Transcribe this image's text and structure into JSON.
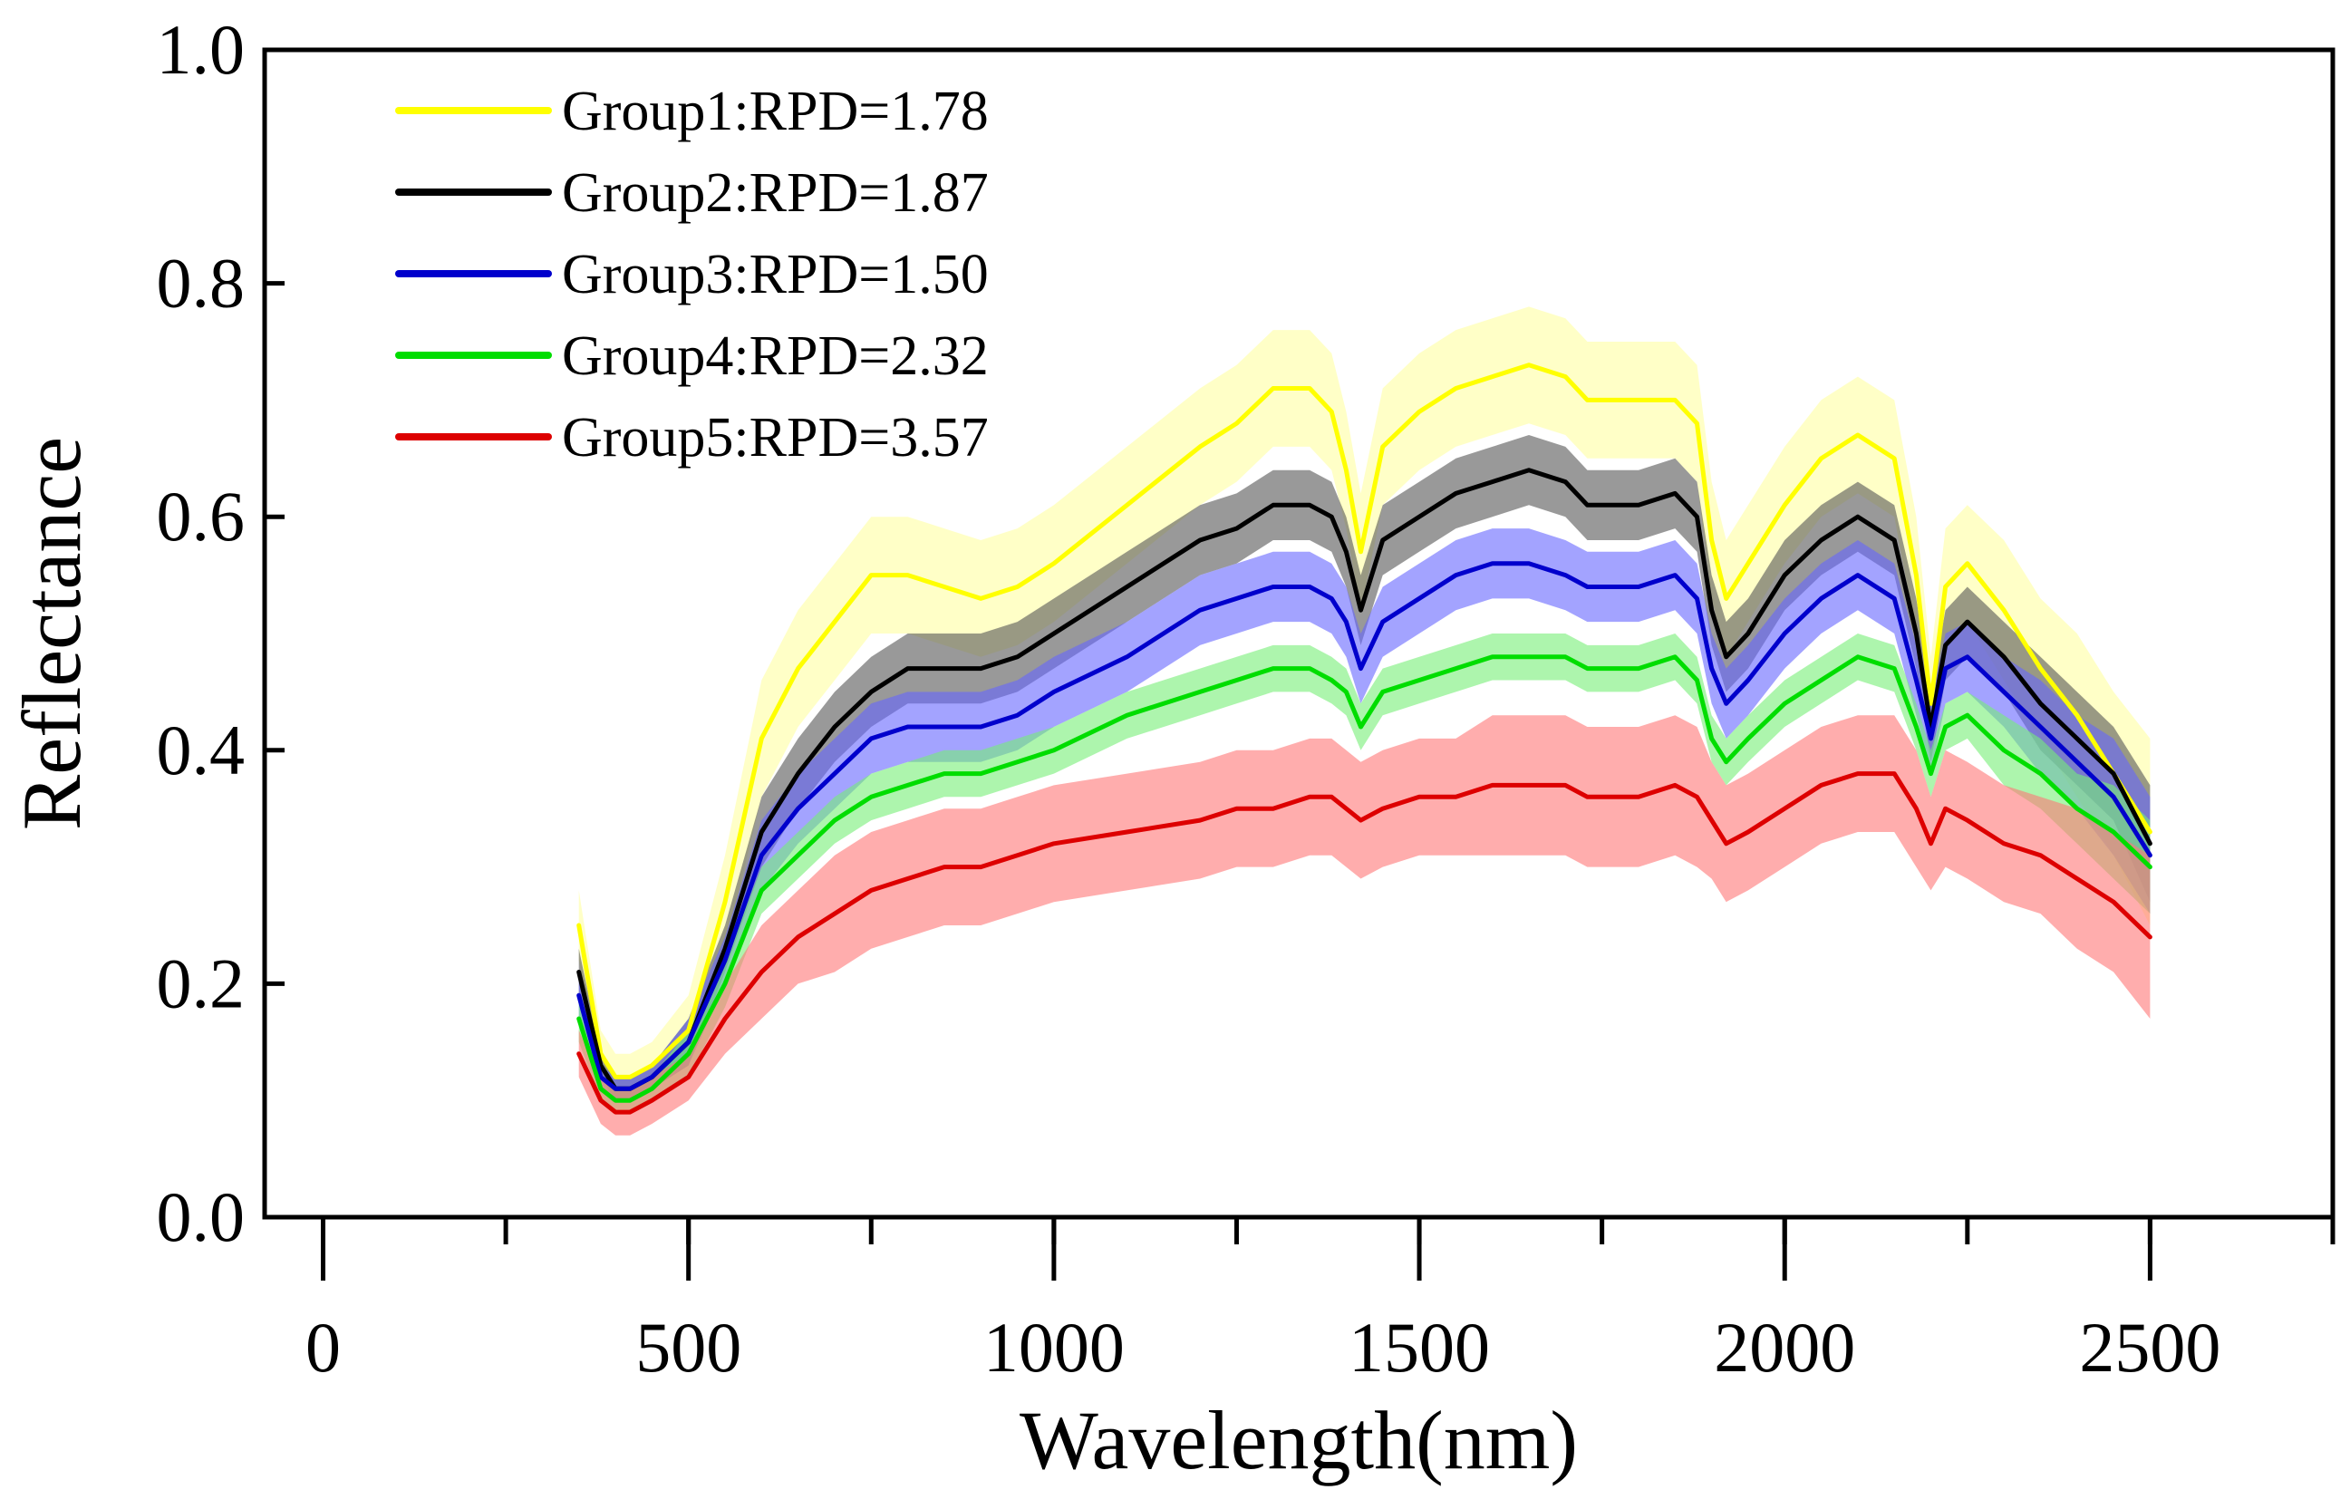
{
  "chart_data": {
    "type": "line",
    "title": "",
    "xlabel": "Wavelength(nm)",
    "ylabel": "Reflectance",
    "xlim": [
      -80,
      2750
    ],
    "ylim": [
      0.0,
      1.0
    ],
    "xticks": [
      0,
      500,
      1000,
      1500,
      2000,
      2500
    ],
    "xtick_labels": [
      "0",
      "500",
      "1000",
      "1500",
      "2000",
      "2500"
    ],
    "yticks": [
      0.0,
      0.2,
      0.4,
      0.6,
      0.8,
      1.0
    ],
    "ytick_labels": [
      "0.0",
      "0.2",
      "0.4",
      "0.6",
      "0.8",
      "1.0"
    ],
    "grid": false,
    "legend_position": "top-left",
    "x": [
      350,
      380,
      400,
      420,
      450,
      500,
      550,
      600,
      650,
      700,
      750,
      800,
      850,
      900,
      950,
      1000,
      1100,
      1200,
      1250,
      1300,
      1350,
      1380,
      1400,
      1420,
      1450,
      1500,
      1550,
      1600,
      1650,
      1700,
      1730,
      1750,
      1800,
      1850,
      1880,
      1900,
      1920,
      1950,
      2000,
      2050,
      2100,
      2150,
      2180,
      2200,
      2220,
      2250,
      2300,
      2350,
      2400,
      2450,
      2500
    ],
    "series": [
      {
        "name": "Group1:RPD=1.78",
        "color": "#ffff00",
        "band_color": "#ffff99",
        "values": [
          0.25,
          0.14,
          0.12,
          0.12,
          0.13,
          0.16,
          0.27,
          0.41,
          0.47,
          0.51,
          0.55,
          0.55,
          0.54,
          0.53,
          0.54,
          0.56,
          0.61,
          0.66,
          0.68,
          0.71,
          0.71,
          0.69,
          0.64,
          0.57,
          0.66,
          0.69,
          0.71,
          0.72,
          0.73,
          0.72,
          0.7,
          0.7,
          0.7,
          0.7,
          0.68,
          0.58,
          0.53,
          0.56,
          0.61,
          0.65,
          0.67,
          0.65,
          0.55,
          0.44,
          0.54,
          0.56,
          0.52,
          0.47,
          0.43,
          0.38,
          0.33
        ],
        "band": [
          0.03,
          0.02,
          0.02,
          0.02,
          0.02,
          0.03,
          0.04,
          0.05,
          0.05,
          0.05,
          0.05,
          0.05,
          0.05,
          0.05,
          0.05,
          0.05,
          0.05,
          0.05,
          0.05,
          0.05,
          0.05,
          0.05,
          0.05,
          0.05,
          0.05,
          0.05,
          0.05,
          0.05,
          0.05,
          0.05,
          0.05,
          0.05,
          0.05,
          0.05,
          0.05,
          0.05,
          0.05,
          0.05,
          0.05,
          0.05,
          0.05,
          0.05,
          0.05,
          0.04,
          0.05,
          0.05,
          0.06,
          0.06,
          0.07,
          0.07,
          0.08
        ]
      },
      {
        "name": "Group2:RPD=1.87",
        "color": "#000000",
        "band_color": "#555555",
        "values": [
          0.21,
          0.13,
          0.11,
          0.11,
          0.12,
          0.15,
          0.23,
          0.33,
          0.38,
          0.42,
          0.45,
          0.47,
          0.47,
          0.47,
          0.48,
          0.5,
          0.54,
          0.58,
          0.59,
          0.61,
          0.61,
          0.6,
          0.57,
          0.52,
          0.58,
          0.6,
          0.62,
          0.63,
          0.64,
          0.63,
          0.61,
          0.61,
          0.61,
          0.62,
          0.6,
          0.52,
          0.48,
          0.5,
          0.55,
          0.58,
          0.6,
          0.58,
          0.5,
          0.42,
          0.49,
          0.51,
          0.48,
          0.44,
          0.41,
          0.38,
          0.32
        ],
        "band": [
          0.02,
          0.01,
          0.01,
          0.01,
          0.01,
          0.02,
          0.02,
          0.03,
          0.03,
          0.03,
          0.03,
          0.03,
          0.03,
          0.03,
          0.03,
          0.03,
          0.03,
          0.03,
          0.03,
          0.03,
          0.03,
          0.03,
          0.03,
          0.03,
          0.03,
          0.03,
          0.03,
          0.03,
          0.03,
          0.03,
          0.03,
          0.03,
          0.03,
          0.03,
          0.03,
          0.03,
          0.03,
          0.03,
          0.03,
          0.03,
          0.03,
          0.03,
          0.03,
          0.03,
          0.03,
          0.03,
          0.03,
          0.04,
          0.04,
          0.04,
          0.05
        ]
      },
      {
        "name": "Group3:RPD=1.50",
        "color": "#0000cc",
        "band_color": "#6666ff",
        "values": [
          0.19,
          0.12,
          0.11,
          0.11,
          0.12,
          0.15,
          0.22,
          0.31,
          0.35,
          0.38,
          0.41,
          0.42,
          0.42,
          0.42,
          0.43,
          0.45,
          0.48,
          0.52,
          0.53,
          0.54,
          0.54,
          0.53,
          0.51,
          0.47,
          0.51,
          0.53,
          0.55,
          0.56,
          0.56,
          0.55,
          0.54,
          0.54,
          0.54,
          0.55,
          0.53,
          0.47,
          0.44,
          0.46,
          0.5,
          0.53,
          0.55,
          0.53,
          0.46,
          0.41,
          0.47,
          0.48,
          0.45,
          0.42,
          0.39,
          0.36,
          0.31
        ],
        "band": [
          0.02,
          0.01,
          0.01,
          0.01,
          0.01,
          0.02,
          0.02,
          0.03,
          0.03,
          0.03,
          0.03,
          0.03,
          0.03,
          0.03,
          0.03,
          0.03,
          0.03,
          0.03,
          0.03,
          0.03,
          0.03,
          0.03,
          0.03,
          0.03,
          0.03,
          0.03,
          0.03,
          0.03,
          0.03,
          0.03,
          0.03,
          0.03,
          0.03,
          0.03,
          0.03,
          0.03,
          0.03,
          0.03,
          0.03,
          0.03,
          0.03,
          0.03,
          0.03,
          0.03,
          0.03,
          0.03,
          0.03,
          0.04,
          0.04,
          0.05,
          0.05
        ]
      },
      {
        "name": "Group4:RPD=2.32",
        "color": "#00dd00",
        "band_color": "#77ee77",
        "values": [
          0.17,
          0.11,
          0.1,
          0.1,
          0.11,
          0.14,
          0.2,
          0.28,
          0.31,
          0.34,
          0.36,
          0.37,
          0.38,
          0.38,
          0.39,
          0.4,
          0.43,
          0.45,
          0.46,
          0.47,
          0.47,
          0.46,
          0.45,
          0.42,
          0.45,
          0.46,
          0.47,
          0.48,
          0.48,
          0.48,
          0.47,
          0.47,
          0.47,
          0.48,
          0.46,
          0.41,
          0.39,
          0.41,
          0.44,
          0.46,
          0.48,
          0.47,
          0.42,
          0.38,
          0.42,
          0.43,
          0.4,
          0.38,
          0.35,
          0.33,
          0.3
        ],
        "band": [
          0.02,
          0.01,
          0.01,
          0.01,
          0.01,
          0.02,
          0.02,
          0.02,
          0.02,
          0.02,
          0.02,
          0.02,
          0.02,
          0.02,
          0.02,
          0.02,
          0.02,
          0.02,
          0.02,
          0.02,
          0.02,
          0.02,
          0.02,
          0.02,
          0.02,
          0.02,
          0.02,
          0.02,
          0.02,
          0.02,
          0.02,
          0.02,
          0.02,
          0.02,
          0.02,
          0.02,
          0.02,
          0.02,
          0.02,
          0.02,
          0.02,
          0.02,
          0.02,
          0.02,
          0.02,
          0.02,
          0.03,
          0.03,
          0.03,
          0.04,
          0.04
        ]
      },
      {
        "name": "Group5:RPD=3.57",
        "color": "#dd0000",
        "band_color": "#ff7777",
        "values": [
          0.14,
          0.1,
          0.09,
          0.09,
          0.1,
          0.12,
          0.17,
          0.21,
          0.24,
          0.26,
          0.28,
          0.29,
          0.3,
          0.3,
          0.31,
          0.32,
          0.33,
          0.34,
          0.35,
          0.35,
          0.36,
          0.36,
          0.35,
          0.34,
          0.35,
          0.36,
          0.36,
          0.37,
          0.37,
          0.37,
          0.36,
          0.36,
          0.36,
          0.37,
          0.36,
          0.34,
          0.32,
          0.33,
          0.35,
          0.37,
          0.38,
          0.38,
          0.35,
          0.32,
          0.35,
          0.34,
          0.32,
          0.31,
          0.29,
          0.27,
          0.24
        ],
        "band": [
          0.02,
          0.02,
          0.02,
          0.02,
          0.02,
          0.02,
          0.03,
          0.04,
          0.04,
          0.05,
          0.05,
          0.05,
          0.05,
          0.05,
          0.05,
          0.05,
          0.05,
          0.05,
          0.05,
          0.05,
          0.05,
          0.05,
          0.05,
          0.05,
          0.05,
          0.05,
          0.05,
          0.06,
          0.06,
          0.06,
          0.06,
          0.06,
          0.06,
          0.06,
          0.06,
          0.05,
          0.05,
          0.05,
          0.05,
          0.05,
          0.05,
          0.05,
          0.05,
          0.04,
          0.05,
          0.05,
          0.05,
          0.05,
          0.06,
          0.06,
          0.07
        ]
      }
    ]
  }
}
